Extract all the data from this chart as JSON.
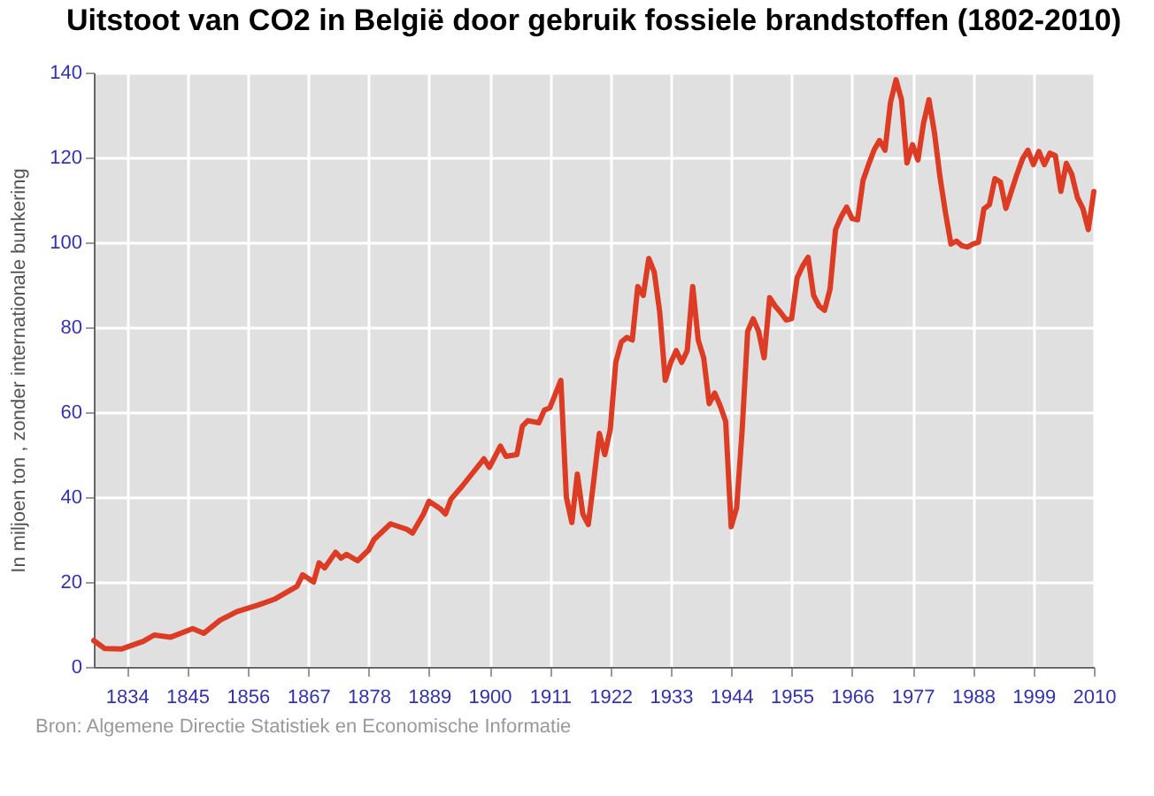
{
  "chart_data": {
    "type": "line",
    "title": "Uitstoot van CO2 in België door gebruik fossiele brandstoffen (1802-2010)",
    "ylabel": "In miljoen ton , zonder internationale bunkering",
    "annotations": [
      "Bron: Algemene Directie Statistiek en Economische Informatie"
    ],
    "x": [
      1828,
      1830,
      1833,
      1837,
      1839,
      1842,
      1846,
      1848,
      1851,
      1854,
      1858,
      1861,
      1865,
      1866,
      1868,
      1869,
      1870,
      1872,
      1873,
      1874,
      1876,
      1878,
      1879,
      1882,
      1885,
      1886,
      1888,
      1889,
      1891,
      1892,
      1893,
      1895,
      1899,
      1900,
      1902,
      1903,
      1905,
      1906,
      1907,
      1909,
      1910,
      1911,
      1913,
      1914,
      1915,
      1916,
      1917,
      1918,
      1919,
      1920,
      1921,
      1922,
      1923,
      1924,
      1925,
      1926,
      1927,
      1928,
      1929,
      1930,
      1931,
      1932,
      1933,
      1934,
      1935,
      1936,
      1937,
      1938,
      1939,
      1940,
      1941,
      1942,
      1943,
      1944,
      1945,
      1946,
      1947,
      1948,
      1949,
      1950,
      1951,
      1952,
      1953,
      1954,
      1955,
      1956,
      1957,
      1958,
      1959,
      1960,
      1961,
      1962,
      1963,
      1964,
      1965,
      1966,
      1967,
      1968,
      1969,
      1970,
      1971,
      1972,
      1973,
      1974,
      1975,
      1976,
      1977,
      1978,
      1979,
      1980,
      1981,
      1982,
      1983,
      1984,
      1985,
      1986,
      1987,
      1988,
      1989,
      1990,
      1991,
      1992,
      1993,
      1994,
      1995,
      1996,
      1997,
      1998,
      1999,
      2000,
      2001,
      2002,
      2003,
      2004,
      2005,
      2006,
      2007,
      2008,
      2009,
      2010
    ],
    "series": [
      {
        "color": "#dd3c24",
        "values": [
          6.2,
          4.3,
          4.2,
          6,
          7.5,
          7,
          9,
          7.9,
          11,
          13,
          14.6,
          16,
          19,
          21.7,
          20,
          24.5,
          23.3,
          27,
          25.6,
          26.5,
          25,
          27.5,
          30,
          33.7,
          32.4,
          31.5,
          36,
          39,
          37.3,
          36,
          39.5,
          42.5,
          49,
          47,
          52,
          49.6,
          50,
          56.7,
          58,
          57.5,
          60.5,
          61,
          67.5,
          40,
          34,
          45.4,
          36,
          33.5,
          44,
          55,
          50,
          56,
          71.7,
          76.5,
          77.6,
          77,
          89.6,
          87.5,
          96.2,
          93,
          83.5,
          67.5,
          71.7,
          74.5,
          71.7,
          74.5,
          89.6,
          77,
          72.8,
          62,
          64.5,
          61.5,
          57.8,
          33,
          37.5,
          55.8,
          79,
          82,
          79,
          72.8,
          87,
          85,
          83.5,
          81.7,
          82,
          91.6,
          94.4,
          96.5,
          87.5,
          85,
          84,
          89,
          103,
          106,
          108.3,
          105.6,
          105.3,
          114.6,
          118.3,
          121.7,
          124,
          121.7,
          133,
          138.3,
          133.6,
          118.7,
          123,
          119.4,
          128,
          133.6,
          125.8,
          115.4,
          107,
          99.6,
          100.3,
          99.2,
          98.9,
          99.6,
          100,
          107.9,
          108.9,
          115,
          114.2,
          108,
          112,
          116,
          119.6,
          121.7,
          118.3,
          121.4,
          118.3,
          121,
          120.4,
          112,
          118.6,
          116,
          110.6,
          108,
          103,
          112
        ]
      }
    ],
    "xlim": [
      1828,
      2010
    ],
    "xticks": [
      1834,
      1845,
      1856,
      1867,
      1878,
      1889,
      1900,
      1911,
      1922,
      1933,
      1944,
      1955,
      1966,
      1977,
      1988,
      1999,
      2010
    ],
    "ylim": [
      0,
      140
    ],
    "yticks": [
      0,
      20,
      40,
      60,
      80,
      100,
      120,
      140
    ],
    "grid": true,
    "legend": false,
    "marker": "none",
    "line_style": "solid"
  }
}
